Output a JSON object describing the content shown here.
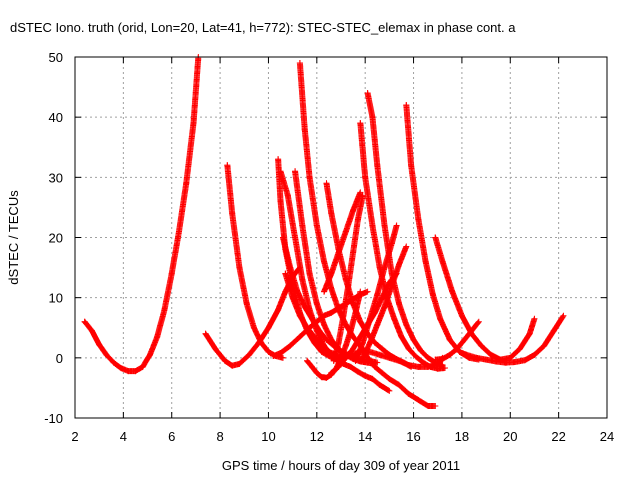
{
  "chart_data": {
    "type": "scatter",
    "title": "dSTEC Iono. truth (orid, Lon=20, Lat=41, h=772): STEC-STEC_elemax in phase cont. a",
    "xlabel": "GPS time / hours of day 309 of year 2011",
    "ylabel": "dSTEC  / TECUs",
    "xlim": [
      2,
      24
    ],
    "ylim": [
      -10,
      50
    ],
    "xticks": [
      2,
      4,
      6,
      8,
      10,
      12,
      14,
      16,
      18,
      20,
      22,
      24
    ],
    "yticks": [
      -10,
      0,
      10,
      20,
      30,
      40,
      50
    ],
    "grid": true,
    "marker": "+",
    "series_color": "#ff0000",
    "series": [
      {
        "x": [
          2.4,
          2.7,
          3.0,
          3.3,
          3.6,
          3.9,
          4.2,
          4.5,
          4.8,
          5.1,
          5.4,
          5.7,
          6.0,
          6.3,
          6.6,
          6.9,
          7.1
        ],
        "y": [
          6,
          4.5,
          2.2,
          0.5,
          -0.8,
          -1.7,
          -2.2,
          -2.2,
          -1.5,
          0.5,
          3.5,
          8,
          14,
          21,
          29,
          39,
          50
        ]
      },
      {
        "x": [
          7.4,
          7.8,
          8.2,
          8.5,
          8.8,
          9.2,
          9.6,
          10.0,
          10.4,
          10.7,
          11.0,
          11.3
        ],
        "y": [
          4,
          1.5,
          -0.5,
          -1.3,
          -1.0,
          0.5,
          2.5,
          5,
          8,
          11,
          13.5,
          15
        ]
      },
      {
        "x": [
          8.3,
          8.5,
          8.8,
          9.1,
          9.4,
          9.7,
          10.0,
          10.3,
          10.6
        ],
        "y": [
          32,
          24,
          15,
          9,
          5,
          2.5,
          1,
          0.3,
          0
        ]
      },
      {
        "x": [
          10.2,
          10.5,
          10.9,
          11.3,
          11.7,
          12.0,
          12.3,
          12.6,
          13.0,
          13.4,
          13.8,
          14.1
        ],
        "y": [
          0.3,
          0.8,
          2,
          3.5,
          5,
          6,
          7,
          7.5,
          8.5,
          9.5,
          10.5,
          11
        ]
      },
      {
        "x": [
          10.4,
          10.5,
          10.7,
          11.0,
          11.3,
          11.6,
          11.9,
          12.2,
          12.5,
          12.8,
          13.1,
          13.4,
          13.7,
          14.0,
          14.3,
          14.6,
          15.0
        ],
        "y": [
          33,
          26,
          18,
          12,
          7.5,
          4.5,
          2.5,
          1,
          0.3,
          -0.3,
          -1,
          -1.5,
          -2.3,
          -3,
          -3.5,
          -4.5,
          -5.5
        ]
      },
      {
        "x": [
          10.5,
          10.8,
          11.1,
          11.4,
          11.7,
          12.0,
          12.3,
          12.6,
          12.9
        ],
        "y": [
          31,
          27,
          20,
          13,
          8,
          4.5,
          2,
          0.5,
          -0.5
        ]
      },
      {
        "x": [
          10.6,
          10.9,
          11.2,
          11.5,
          11.8,
          12.1,
          12.4,
          12.7,
          13.0,
          13.3,
          13.6,
          13.9,
          14.2,
          14.5
        ],
        "y": [
          20,
          15,
          11,
          8.5,
          6.5,
          4.5,
          3,
          2,
          1,
          0.5,
          0,
          -0.3,
          -0.5,
          -0.8
        ]
      },
      {
        "x": [
          10.7,
          11.0,
          11.3,
          11.6,
          11.9,
          12.2,
          12.5,
          12.8,
          13.1
        ],
        "y": [
          14,
          10,
          7,
          5,
          3.5,
          2,
          1,
          0.5,
          0
        ]
      },
      {
        "x": [
          11.1,
          11.4,
          11.7,
          12.0,
          12.3,
          12.6,
          12.9,
          13.2,
          13.5,
          13.8,
          14.1,
          14.4
        ],
        "y": [
          31,
          22,
          14,
          9,
          5.5,
          3,
          1.5,
          0.5,
          -0.2,
          -0.6,
          -0.8,
          -1
        ]
      },
      {
        "x": [
          11.3,
          11.5,
          11.7,
          12.0,
          12.3,
          12.6,
          12.9,
          13.2,
          13.5,
          13.8,
          14.1,
          14.4,
          14.7,
          15.0,
          15.4,
          15.8,
          16.2,
          16.6,
          16.9
        ],
        "y": [
          49,
          38,
          30,
          22,
          16,
          11.5,
          8,
          5.5,
          3.5,
          2,
          0,
          -1.5,
          -2.5,
          -3.5,
          -4.5,
          -6,
          -7,
          -8,
          -8
        ]
      },
      {
        "x": [
          11.6,
          11.8,
          12.0,
          12.2,
          12.4,
          12.6,
          12.8,
          13.0,
          13.2,
          13.4,
          13.6,
          13.8
        ],
        "y": [
          -0.5,
          -1.5,
          -2.5,
          -3.2,
          -3.3,
          -2.8,
          -1.8,
          0,
          2,
          4.5,
          7.5,
          11
        ]
      },
      {
        "x": [
          12.4,
          12.6,
          12.9,
          13.2,
          13.5,
          13.8,
          14.1,
          14.4,
          14.7,
          15.0,
          15.3,
          15.6,
          15.9
        ],
        "y": [
          29,
          24,
          18,
          13,
          9,
          6,
          4,
          2.5,
          1.5,
          0.5,
          -0.2,
          -0.8,
          -1.5
        ]
      },
      {
        "x": [
          12.3,
          12.6,
          12.9,
          13.2,
          13.5,
          13.8
        ],
        "y": [
          11,
          14,
          17.5,
          21,
          24.5,
          27.5
        ]
      },
      {
        "x": [
          12.6,
          12.9,
          13.2,
          13.5,
          13.8,
          14.1,
          14.4,
          14.7,
          15.0,
          15.3
        ],
        "y": [
          -2.5,
          -1.5,
          0,
          1.5,
          3.5,
          5.5,
          7.5,
          10,
          12.5,
          14
        ]
      },
      {
        "x": [
          12.7,
          12.9,
          13.1,
          13.3,
          13.5,
          13.7,
          13.9
        ],
        "y": [
          -0.5,
          2.5,
          7,
          12,
          17.5,
          23,
          27
        ]
      },
      {
        "x": [
          13.8,
          14.0,
          14.3,
          14.6,
          14.9,
          15.2,
          15.5,
          15.8,
          16.1,
          16.4,
          16.7,
          17.0,
          17.3
        ],
        "y": [
          39,
          30,
          22,
          15,
          10,
          6.5,
          3.5,
          1.5,
          0.2,
          -0.8,
          -1.5,
          -1.8,
          -1.7
        ]
      },
      {
        "x": [
          14.1,
          14.3,
          14.5,
          14.8,
          15.1,
          15.4,
          15.7,
          16.0,
          16.3,
          16.6,
          16.9,
          17.2
        ],
        "y": [
          44,
          40,
          32,
          22,
          14,
          9,
          5.5,
          3,
          1.2,
          0,
          -0.8,
          -1.2
        ]
      },
      {
        "x": [
          13.6,
          13.9,
          14.2,
          14.5,
          14.8,
          15.1,
          15.3
        ],
        "y": [
          -0.5,
          2.5,
          6.5,
          10.5,
          15,
          19,
          22
        ]
      },
      {
        "x": [
          13.0,
          13.4,
          13.8,
          14.2,
          14.6,
          15.0,
          15.4,
          15.8,
          16.2,
          16.6,
          17.0,
          17.2
        ],
        "y": [
          0,
          0.5,
          1,
          1,
          0.5,
          0,
          -0.5,
          -1.2,
          -1.5,
          -1.5,
          -1,
          0
        ]
      },
      {
        "x": [
          13.9,
          14.2,
          14.5,
          14.8,
          15.1,
          15.4,
          15.7
        ],
        "y": [
          0,
          2.5,
          5.5,
          8.5,
          12,
          15.5,
          18.5
        ]
      },
      {
        "x": [
          15.7,
          15.9,
          16.2,
          16.5,
          16.8,
          17.1,
          17.5,
          17.9,
          18.3,
          18.7
        ],
        "y": [
          42,
          32,
          23,
          16,
          10.5,
          6.5,
          3,
          1,
          0,
          -0.3
        ]
      },
      {
        "x": [
          16.9,
          17.2,
          17.5,
          17.8,
          18.1,
          18.4,
          18.7
        ],
        "y": [
          -0.3,
          -0.2,
          0.5,
          1.5,
          3,
          4.5,
          6
        ]
      },
      {
        "x": [
          16.9,
          17.2,
          17.6,
          18.0,
          18.4,
          18.8,
          19.2,
          19.6,
          20.0,
          20.4,
          20.8,
          21.0
        ],
        "y": [
          20,
          16,
          11,
          7,
          4,
          2,
          0.5,
          -0.3,
          0,
          1.5,
          4,
          6.5
        ]
      },
      {
        "x": [
          17.9,
          18.2,
          18.6,
          19.0,
          19.4,
          19.8,
          20.2,
          20.6,
          21.0,
          21.4,
          21.8,
          22.2
        ],
        "y": [
          1,
          0.5,
          0,
          -0.3,
          -0.6,
          -0.8,
          -0.7,
          -0.4,
          0.5,
          2,
          4.5,
          7
        ]
      }
    ]
  }
}
